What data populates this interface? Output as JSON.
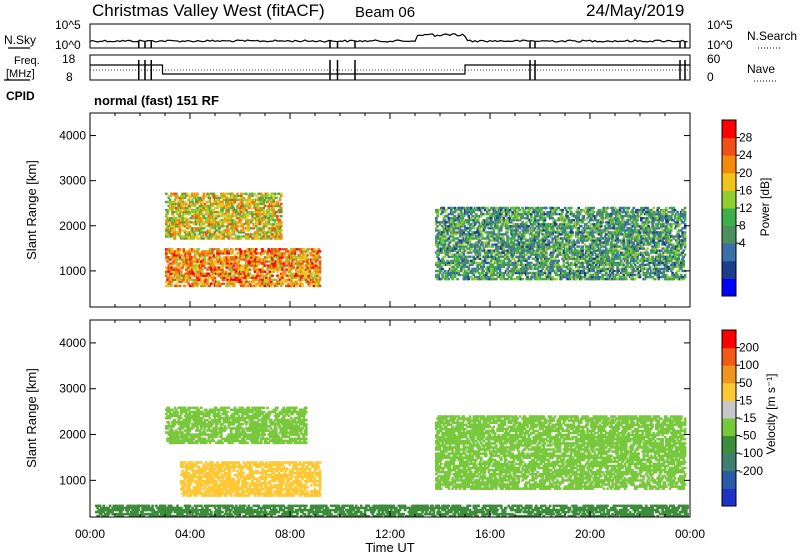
{
  "header": {
    "station": "Christmas Valley West (fitACF)",
    "beam": "Beam 06",
    "date": "24/May/2019"
  },
  "summary_panels": {
    "nsky_label": "N.Sky",
    "nsearch_label": "N.Search",
    "noise_ticks": [
      "10^5",
      "10^0"
    ],
    "freq_label_line1": "Freq.",
    "freq_label_line2": "[MHz]",
    "freq_ticks": [
      "18",
      "8"
    ],
    "nave_label": "Nave",
    "nave_ticks": [
      "60",
      "0"
    ],
    "cpid_label": "CPID",
    "cpid_value": "normal (fast) 151 RF"
  },
  "chart_data": [
    {
      "type": "heatmap",
      "title": "",
      "panel": "Power",
      "ylabel": "Slant Range [km]",
      "xlabel": "Time UT",
      "ylim": [
        200,
        4500
      ],
      "yticks": [
        "4000",
        "3000",
        "2000",
        "1000"
      ],
      "xlim": [
        0,
        24
      ],
      "xticks": [
        "00:00",
        "04:00",
        "08:00",
        "12:00",
        "16:00",
        "20:00",
        "00:00"
      ],
      "colorbar": {
        "label": "Power [dB]",
        "ticks": [
          "28",
          "24",
          "20",
          "16",
          "12",
          "8",
          "4"
        ],
        "colors": [
          "#0000ff",
          "#1e3c8c",
          "#3a6fa8",
          "#4e8f60",
          "#3cb04a",
          "#8fce2e",
          "#f2c41a",
          "#f58a0a",
          "#f05014",
          "#ff0000"
        ]
      },
      "features": [
        {
          "t_start": 3.0,
          "t_end": 7.6,
          "r_min": 1700,
          "r_max": 2700,
          "power_db": 20
        },
        {
          "t_start": 3.0,
          "t_end": 9.2,
          "r_min": 650,
          "r_max": 1500,
          "power_db": 24
        },
        {
          "t_start": 13.8,
          "t_end": 23.8,
          "r_min": 800,
          "r_max": 2400,
          "power_db": 12
        }
      ]
    },
    {
      "type": "heatmap",
      "title": "",
      "panel": "Velocity",
      "ylabel": "Slant Range [km]",
      "xlabel": "Time UT",
      "ylim": [
        200,
        4500
      ],
      "yticks": [
        "4000",
        "3000",
        "2000",
        "1000"
      ],
      "xlim": [
        0,
        24
      ],
      "xticks": [
        "00:00",
        "04:00",
        "08:00",
        "12:00",
        "16:00",
        "20:00",
        "00:00"
      ],
      "colorbar": {
        "label": "Velocity [m s⁻¹]",
        "ticks": [
          "200",
          "100",
          "50",
          "15",
          "-15",
          "-50",
          "-100",
          "-200"
        ],
        "colors": [
          "#1e32c8",
          "#2a5aa8",
          "#3f7f70",
          "#3c8c3c",
          "#78c83c",
          "#c8c8c8",
          "#ffc832",
          "#f0961e",
          "#f05a14",
          "#ff0000"
        ]
      },
      "features": [
        {
          "t_start": 3.0,
          "t_end": 8.6,
          "r_min": 1800,
          "r_max": 2600,
          "velocity_ms": 0
        },
        {
          "t_start": 3.6,
          "t_end": 9.2,
          "r_min": 650,
          "r_max": 1400,
          "velocity_ms": -70
        },
        {
          "t_start": 13.8,
          "t_end": 23.8,
          "r_min": 800,
          "r_max": 2400,
          "velocity_ms": 0
        },
        {
          "t_start": 0.2,
          "t_end": 23.9,
          "r_min": 200,
          "r_max": 450,
          "velocity_ms": 30
        }
      ]
    }
  ]
}
